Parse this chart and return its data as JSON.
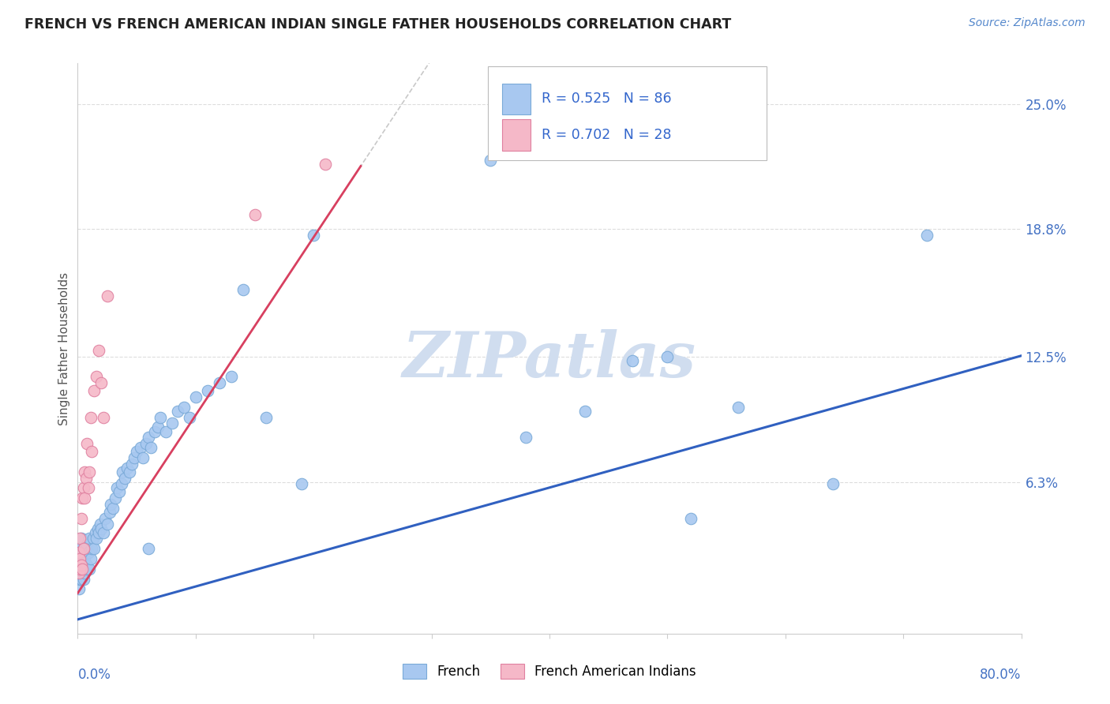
{
  "title": "FRENCH VS FRENCH AMERICAN INDIAN SINGLE FATHER HOUSEHOLDS CORRELATION CHART",
  "source": "Source: ZipAtlas.com",
  "ylabel": "Single Father Households",
  "ytick_labels": [
    "6.3%",
    "12.5%",
    "18.8%",
    "25.0%"
  ],
  "ytick_values": [
    0.063,
    0.125,
    0.188,
    0.25
  ],
  "xlim": [
    0.0,
    0.8
  ],
  "ylim": [
    -0.012,
    0.27
  ],
  "french_color": "#A8C8F0",
  "french_edge": "#7AAAD8",
  "ai_color": "#F5B8C8",
  "ai_edge": "#E080A0",
  "line_french_color": "#3060C0",
  "line_ai_color": "#D84060",
  "dash_color": "#BBBBBB",
  "legend_R_french": "R = 0.525",
  "legend_N_french": "N = 86",
  "legend_R_ai": "R = 0.702",
  "legend_N_ai": "N = 28",
  "legend_text_color": "#3366CC",
  "watermark": "ZIPatlas",
  "watermark_color": "#D0DDEF",
  "title_color": "#222222",
  "source_color": "#5588CC",
  "ylabel_color": "#555555",
  "ytick_color": "#4472C4",
  "xtick_color": "#4472C4",
  "grid_color": "#DDDDDD",
  "spine_color": "#CCCCCC",
  "french_x": [
    0.001,
    0.001,
    0.001,
    0.001,
    0.001,
    0.002,
    0.002,
    0.002,
    0.002,
    0.003,
    0.003,
    0.003,
    0.003,
    0.004,
    0.004,
    0.004,
    0.005,
    0.005,
    0.005,
    0.006,
    0.006,
    0.007,
    0.007,
    0.008,
    0.008,
    0.009,
    0.01,
    0.01,
    0.011,
    0.012,
    0.013,
    0.014,
    0.015,
    0.016,
    0.017,
    0.018,
    0.019,
    0.02,
    0.022,
    0.023,
    0.025,
    0.027,
    0.028,
    0.03,
    0.032,
    0.033,
    0.035,
    0.037,
    0.038,
    0.04,
    0.042,
    0.044,
    0.046,
    0.048,
    0.05,
    0.053,
    0.055,
    0.058,
    0.06,
    0.062,
    0.065,
    0.068,
    0.07,
    0.075,
    0.08,
    0.085,
    0.09,
    0.095,
    0.1,
    0.11,
    0.12,
    0.13,
    0.14,
    0.16,
    0.19,
    0.2,
    0.35,
    0.43,
    0.47,
    0.5,
    0.52,
    0.56,
    0.64,
    0.72,
    0.38,
    0.06
  ],
  "french_y": [
    0.018,
    0.022,
    0.026,
    0.03,
    0.01,
    0.015,
    0.02,
    0.025,
    0.03,
    0.015,
    0.02,
    0.025,
    0.035,
    0.018,
    0.022,
    0.028,
    0.015,
    0.02,
    0.03,
    0.018,
    0.025,
    0.02,
    0.03,
    0.022,
    0.032,
    0.028,
    0.02,
    0.035,
    0.025,
    0.03,
    0.035,
    0.03,
    0.038,
    0.035,
    0.04,
    0.038,
    0.042,
    0.04,
    0.038,
    0.045,
    0.042,
    0.048,
    0.052,
    0.05,
    0.055,
    0.06,
    0.058,
    0.062,
    0.068,
    0.065,
    0.07,
    0.068,
    0.072,
    0.075,
    0.078,
    0.08,
    0.075,
    0.082,
    0.085,
    0.08,
    0.088,
    0.09,
    0.095,
    0.088,
    0.092,
    0.098,
    0.1,
    0.095,
    0.105,
    0.108,
    0.112,
    0.115,
    0.158,
    0.095,
    0.062,
    0.185,
    0.222,
    0.098,
    0.123,
    0.125,
    0.045,
    0.1,
    0.062,
    0.185,
    0.085,
    0.03
  ],
  "ai_x": [
    0.001,
    0.001,
    0.001,
    0.002,
    0.002,
    0.002,
    0.003,
    0.003,
    0.004,
    0.004,
    0.005,
    0.005,
    0.006,
    0.006,
    0.007,
    0.008,
    0.009,
    0.01,
    0.011,
    0.012,
    0.014,
    0.016,
    0.018,
    0.02,
    0.022,
    0.025,
    0.15,
    0.21
  ],
  "ai_y": [
    0.018,
    0.022,
    0.028,
    0.02,
    0.025,
    0.035,
    0.022,
    0.045,
    0.02,
    0.055,
    0.03,
    0.06,
    0.055,
    0.068,
    0.065,
    0.082,
    0.06,
    0.068,
    0.095,
    0.078,
    0.108,
    0.115,
    0.128,
    0.112,
    0.095,
    0.155,
    0.195,
    0.22
  ]
}
